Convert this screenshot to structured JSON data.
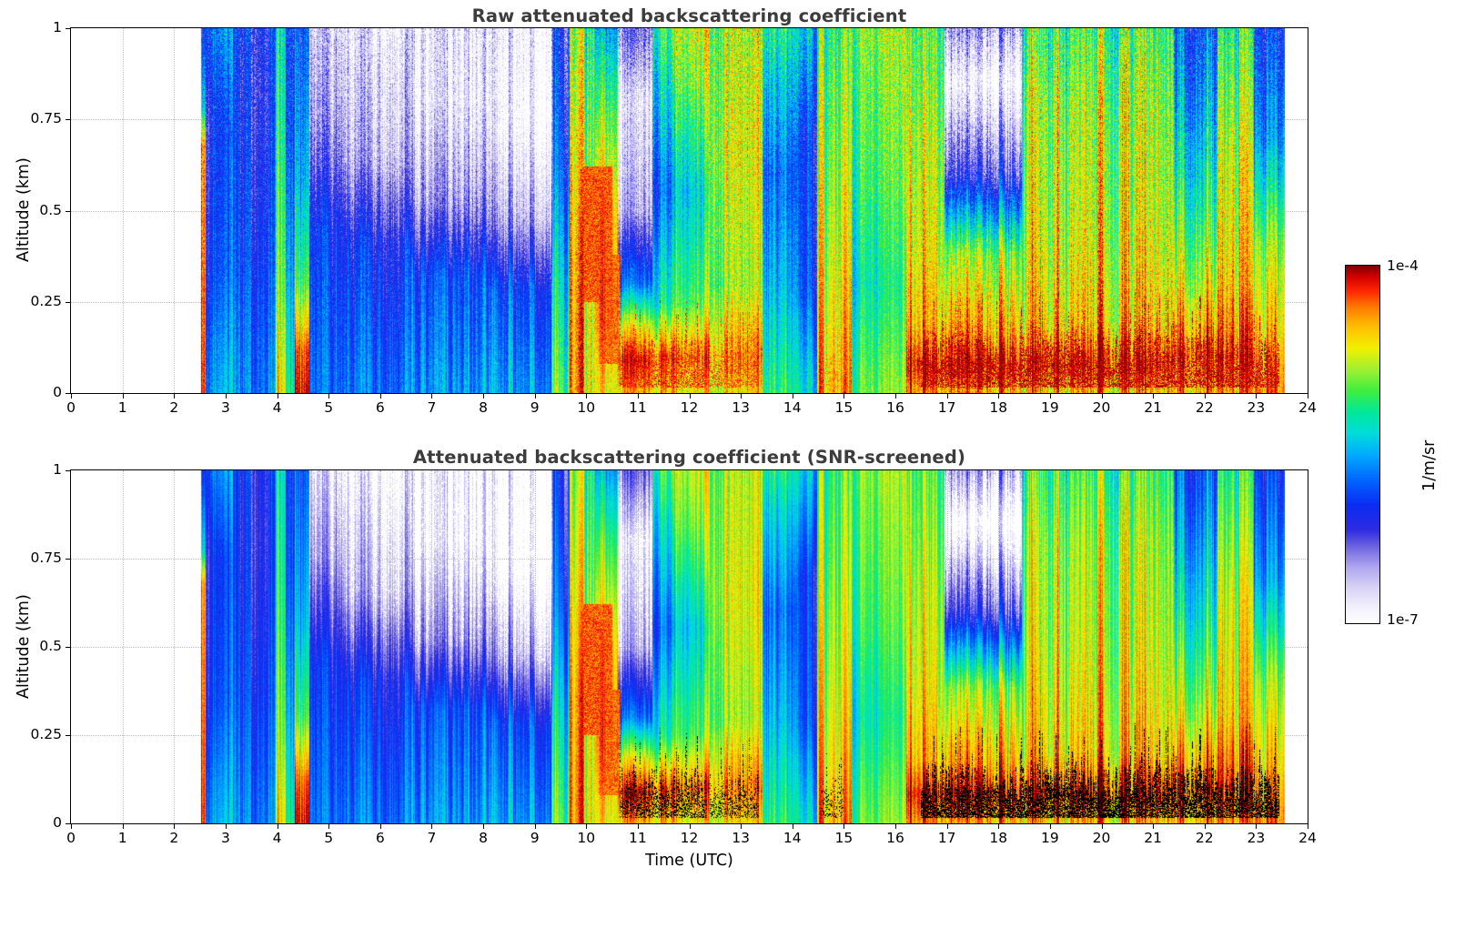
{
  "panels": [
    {
      "title": "Raw attenuated backscattering coefficient"
    },
    {
      "title": "Attenuated backscattering coefficient (SNR-screened)"
    }
  ],
  "axes": {
    "x": {
      "label": "Time (UTC)",
      "min": 0,
      "max": 24,
      "ticks": [
        0,
        1,
        2,
        3,
        4,
        5,
        6,
        7,
        8,
        9,
        10,
        11,
        12,
        13,
        14,
        15,
        16,
        17,
        18,
        19,
        20,
        21,
        22,
        23,
        24
      ],
      "tick_labels": [
        "0",
        "1",
        "2",
        "3",
        "4",
        "5",
        "6",
        "7",
        "8",
        "9",
        "10",
        "11",
        "12",
        "13",
        "14",
        "15",
        "16",
        "17",
        "18",
        "19",
        "20",
        "21",
        "22",
        "23",
        "24"
      ]
    },
    "y": {
      "label": "Altitude (km)",
      "min": 0,
      "max": 1,
      "ticks": [
        0,
        0.25,
        0.5,
        0.75,
        1
      ],
      "tick_labels": [
        "0",
        "0.25",
        "0.5",
        "0.75",
        "1"
      ]
    }
  },
  "colorbar": {
    "max_label": "1e-4",
    "min_label": "1e-7",
    "unit_label": "1/m/sr"
  },
  "chart_data": {
    "type": "heatmap",
    "title_top": "Raw attenuated backscattering coefficient",
    "title_bottom": "Attenuated backscattering coefficient (SNR-screened)",
    "xlabel": "Time (UTC)",
    "ylabel": "Altitude (km)",
    "x_range_hours_utc": [
      0,
      24
    ],
    "altitude_range_km": [
      0,
      1
    ],
    "value_units": "1/m/sr",
    "value_scale": "log10, colorbar from 1e-7 (white) to 1e-4 (dark red)",
    "log_min": -7,
    "log_max": -4,
    "data_start_utc": 2.52,
    "data_end_utc": 23.55,
    "colormap": [
      {
        "f": 0.0,
        "c": "#ffffff"
      },
      {
        "f": 0.05,
        "c": "#f0edfb"
      },
      {
        "f": 0.1,
        "c": "#d8d2f6"
      },
      {
        "f": 0.16,
        "c": "#aba2ee"
      },
      {
        "f": 0.21,
        "c": "#7168e0"
      },
      {
        "f": 0.26,
        "c": "#2f2be2"
      },
      {
        "f": 0.33,
        "c": "#0b2cf2"
      },
      {
        "f": 0.4,
        "c": "#0066ff"
      },
      {
        "f": 0.47,
        "c": "#00aaff"
      },
      {
        "f": 0.53,
        "c": "#00dcdc"
      },
      {
        "f": 0.59,
        "c": "#00e89c"
      },
      {
        "f": 0.65,
        "c": "#3fee3f"
      },
      {
        "f": 0.71,
        "c": "#9ff032"
      },
      {
        "f": 0.77,
        "c": "#f2f000"
      },
      {
        "f": 0.83,
        "c": "#ffbe00"
      },
      {
        "f": 0.885,
        "c": "#ff7a00"
      },
      {
        "f": 0.93,
        "c": "#ff2600"
      },
      {
        "f": 0.97,
        "c": "#d40000"
      },
      {
        "f": 1.0,
        "c": "#7f0000"
      }
    ],
    "segments": [
      {
        "t0": 2.52,
        "t1": 2.62,
        "profile": [
          [
            0,
            -4.2
          ],
          [
            0.68,
            -4.4
          ],
          [
            0.78,
            -5.4
          ],
          [
            1,
            -6.0
          ]
        ]
      },
      {
        "t0": 2.62,
        "t1": 3.15,
        "profile": [
          [
            0,
            -5.6
          ],
          [
            0.35,
            -5.95
          ],
          [
            0.75,
            -6.05
          ],
          [
            1,
            -5.75
          ]
        ]
      },
      {
        "t0": 3.15,
        "t1": 3.98,
        "profile": [
          [
            0,
            -5.75
          ],
          [
            0.4,
            -6.0
          ],
          [
            0.8,
            -6.15
          ],
          [
            1,
            -6.1
          ]
        ]
      },
      {
        "t0": 3.98,
        "t1": 4.17,
        "profile": [
          [
            0,
            -4.55
          ],
          [
            0.25,
            -4.85
          ],
          [
            0.6,
            -5.05
          ],
          [
            1,
            -5.25
          ]
        ]
      },
      {
        "t0": 4.17,
        "t1": 4.34,
        "profile": [
          [
            0,
            -5.3
          ],
          [
            0.3,
            -5.7
          ],
          [
            0.7,
            -6.0
          ],
          [
            1,
            -6.1
          ]
        ]
      },
      {
        "t0": 4.34,
        "t1": 4.62,
        "profile": [
          [
            0,
            -4.15
          ],
          [
            0.12,
            -4.35
          ],
          [
            0.3,
            -5.1
          ],
          [
            0.6,
            -5.6
          ],
          [
            1,
            -5.9
          ]
        ]
      },
      {
        "t0": 4.62,
        "t1": 5.3,
        "profile": [
          [
            0,
            -5.8
          ],
          [
            0.45,
            -6.05
          ],
          [
            0.75,
            -6.55
          ],
          [
            1,
            -6.75
          ]
        ]
      },
      {
        "t0": 5.3,
        "t1": 6.6,
        "profile": [
          [
            0,
            -5.75
          ],
          [
            0.4,
            -6.05
          ],
          [
            0.65,
            -6.6
          ],
          [
            1,
            -6.85
          ]
        ]
      },
      {
        "t0": 6.6,
        "t1": 8.1,
        "profile": [
          [
            0,
            -5.7
          ],
          [
            0.32,
            -5.95
          ],
          [
            0.52,
            -6.55
          ],
          [
            0.8,
            -6.9
          ],
          [
            1,
            -6.9
          ]
        ]
      },
      {
        "t0": 8.1,
        "t1": 9.35,
        "profile": [
          [
            0,
            -5.55
          ],
          [
            0.28,
            -5.85
          ],
          [
            0.48,
            -6.5
          ],
          [
            0.75,
            -6.9
          ],
          [
            1,
            -6.85
          ]
        ]
      },
      {
        "t0": 9.35,
        "t1": 9.68,
        "profile": [
          [
            0,
            -5.0
          ],
          [
            0.3,
            -5.35
          ],
          [
            0.6,
            -5.8
          ],
          [
            1,
            -6.1
          ]
        ]
      },
      {
        "t0": 9.68,
        "t1": 10.18,
        "noise": 1.3,
        "profile": [
          [
            0,
            -4.55
          ],
          [
            0.35,
            -4.6
          ],
          [
            0.7,
            -4.85
          ],
          [
            1,
            -5.05
          ]
        ]
      },
      {
        "t0": 10.18,
        "t1": 10.62,
        "profile": [
          [
            0,
            -4.7
          ],
          [
            0.22,
            -4.4
          ],
          [
            0.5,
            -4.55
          ],
          [
            0.8,
            -5.1
          ],
          [
            1,
            -5.6
          ]
        ]
      },
      {
        "t0": 10.62,
        "t1": 11.28,
        "profile": [
          [
            0,
            -4.6
          ],
          [
            0.09,
            -4.25
          ],
          [
            0.18,
            -4.8
          ],
          [
            0.3,
            -5.9
          ],
          [
            0.5,
            -6.7
          ],
          [
            0.8,
            -6.95
          ],
          [
            1,
            -6.5
          ]
        ]
      },
      {
        "t0": 11.28,
        "t1": 11.72,
        "profile": [
          [
            0,
            -4.6
          ],
          [
            0.1,
            -4.3
          ],
          [
            0.25,
            -5.3
          ],
          [
            0.55,
            -5.85
          ],
          [
            0.85,
            -5.4
          ],
          [
            1,
            -5.15
          ]
        ]
      },
      {
        "t0": 11.72,
        "t1": 12.38,
        "profile": [
          [
            0,
            -4.75
          ],
          [
            0.1,
            -4.4
          ],
          [
            0.25,
            -5.1
          ],
          [
            0.55,
            -5.5
          ],
          [
            0.85,
            -5.0
          ],
          [
            1,
            -4.85
          ]
        ]
      },
      {
        "t0": 12.38,
        "t1": 13.42,
        "noise": 1.3,
        "profile": [
          [
            0,
            -4.7
          ],
          [
            0.1,
            -4.45
          ],
          [
            0.3,
            -4.95
          ],
          [
            0.65,
            -4.8
          ],
          [
            1,
            -4.9
          ]
        ]
      },
      {
        "t0": 13.42,
        "t1": 14.1,
        "profile": [
          [
            0,
            -5.1
          ],
          [
            0.3,
            -5.5
          ],
          [
            0.6,
            -5.75
          ],
          [
            0.9,
            -5.35
          ],
          [
            1,
            -5.15
          ]
        ]
      },
      {
        "t0": 14.1,
        "t1": 14.48,
        "profile": [
          [
            0,
            -5.4
          ],
          [
            0.3,
            -5.9
          ],
          [
            0.7,
            -6.0
          ],
          [
            1,
            -5.5
          ]
        ]
      },
      {
        "t0": 14.48,
        "t1": 15.15,
        "profile": [
          [
            0,
            -4.5
          ],
          [
            0.3,
            -4.7
          ],
          [
            0.7,
            -4.95
          ],
          [
            1,
            -5.1
          ]
        ]
      },
      {
        "t0": 15.15,
        "t1": 16.22,
        "profile": [
          [
            0,
            -4.95
          ],
          [
            0.3,
            -5.25
          ],
          [
            0.6,
            -5.05
          ],
          [
            1,
            -4.9
          ]
        ]
      },
      {
        "t0": 16.22,
        "t1": 16.95,
        "noise": 1.2,
        "profile": [
          [
            0,
            -4.35
          ],
          [
            0.08,
            -4.1
          ],
          [
            0.18,
            -4.45
          ],
          [
            0.4,
            -4.65
          ],
          [
            0.7,
            -4.8
          ],
          [
            1,
            -5.0
          ]
        ]
      },
      {
        "t0": 16.95,
        "t1": 18.45,
        "noise": 1.3,
        "profile": [
          [
            0,
            -4.4
          ],
          [
            0.08,
            -4.05
          ],
          [
            0.16,
            -4.35
          ],
          [
            0.38,
            -4.85
          ],
          [
            0.6,
            -6.2
          ],
          [
            0.85,
            -6.95
          ],
          [
            1,
            -6.5
          ]
        ]
      },
      {
        "t0": 18.45,
        "t1": 21.4,
        "noise": 1.4,
        "profile": [
          [
            0,
            -4.5
          ],
          [
            0.08,
            -4.15
          ],
          [
            0.2,
            -4.55
          ],
          [
            0.5,
            -4.75
          ],
          [
            0.8,
            -4.85
          ],
          [
            1,
            -5.05
          ]
        ]
      },
      {
        "t0": 21.4,
        "t1": 22.25,
        "noise": 1.2,
        "profile": [
          [
            0,
            -4.5
          ],
          [
            0.1,
            -4.25
          ],
          [
            0.3,
            -4.8
          ],
          [
            0.6,
            -5.35
          ],
          [
            0.85,
            -5.7
          ],
          [
            1,
            -5.9
          ]
        ]
      },
      {
        "t0": 22.25,
        "t1": 22.95,
        "noise": 1.2,
        "profile": [
          [
            0,
            -4.45
          ],
          [
            0.1,
            -4.2
          ],
          [
            0.3,
            -4.6
          ],
          [
            0.65,
            -4.8
          ],
          [
            1,
            -5.2
          ]
        ]
      },
      {
        "t0": 22.95,
        "t1": 23.55,
        "profile": [
          [
            0,
            -4.4
          ],
          [
            0.12,
            -4.55
          ],
          [
            0.4,
            -4.95
          ],
          [
            0.7,
            -5.7
          ],
          [
            1,
            -6.05
          ]
        ]
      }
    ],
    "surface_bands": [
      {
        "t0": 10.65,
        "t1": 12.35,
        "log": -4.05,
        "density": 0.4,
        "density_screened": 0.45,
        "alt_base": 0.06,
        "alt_var": 0.1
      },
      {
        "t0": 12.4,
        "t1": 13.35,
        "log": -4.1,
        "density": 0.3,
        "density_screened": 0.32,
        "alt_base": 0.06,
        "alt_var": 0.09
      },
      {
        "t0": 14.55,
        "t1": 15.0,
        "log": -4.2,
        "density": 0.18,
        "density_screened": 0.2,
        "alt_base": 0.05,
        "alt_var": 0.08
      },
      {
        "t0": 16.5,
        "t1": 23.45,
        "log": -4.0,
        "density": 0.55,
        "density_screened": 0.65,
        "alt_base": 0.06,
        "alt_var": 0.11
      }
    ],
    "blobs": [
      {
        "t0": 9.95,
        "t1": 10.5,
        "a0": 0.25,
        "a1": 0.62,
        "log": -4.3
      },
      {
        "t0": 10.25,
        "t1": 10.65,
        "a0": 0.08,
        "a1": 0.38,
        "log": -4.35
      }
    ],
    "noise": {
      "column": 0.22,
      "cell": 0.16,
      "aloft_extra": 0.26
    },
    "screening": {
      "threshold": -6.78,
      "jitter": 0.45,
      "note": "bottom panel: low-SNR pixels removed (white); saturated near-surface echoes rendered black"
    }
  }
}
